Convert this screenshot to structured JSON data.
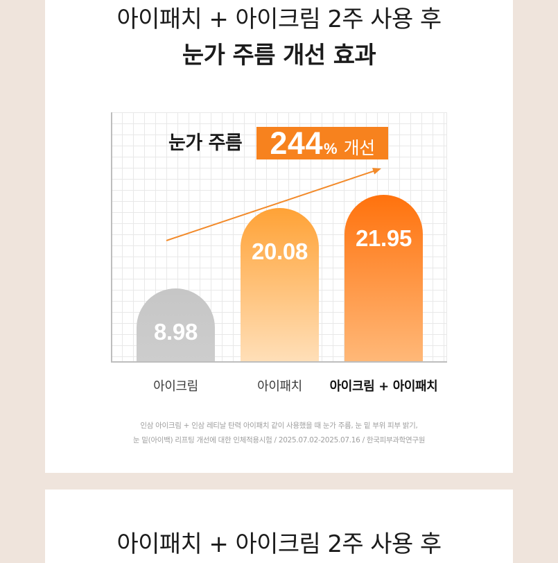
{
  "colors": {
    "page_background": "#efe4dc",
    "card_background": "#ffffff",
    "text": "#1b1b1b",
    "accent": "#f7821e",
    "arrow": "#f28a2a",
    "footnote": "#9e9e9e",
    "grid": "#e8e8e8",
    "axis": "#bdbdbd"
  },
  "chart_data": {
    "type": "bar",
    "subtitle": "아이패치 + 아이크림 2주 사용 후",
    "title": "눈가 주름 개선 효과",
    "categories": [
      "아이크림",
      "아이패치",
      "아이크림 + 아이패치"
    ],
    "values": [
      8.98,
      20.08,
      21.95
    ],
    "bar_colors": [
      [
        "#c6c6c6",
        "#cdcdcd"
      ],
      [
        "#ffa236",
        "#ffdfb8"
      ],
      [
        "#ff720d",
        "#ffb878"
      ]
    ],
    "grid": true,
    "annotation": {
      "label": "눈가 주름",
      "value": "244",
      "unit": "%",
      "text": "개선"
    },
    "note_lines": [
      "인삼 아이크림 + 인삼 레티날 탄력 아이패치 같이 사용했을 때 눈가 주름, 눈 밑 부위 피부 밝기,",
      "눈 밑(아이백) 리프팅 개선에 대한 인체적용시험 / 2025.07.02-2025.07.16 / 한국피부과학연구원"
    ]
  },
  "section_2": {
    "title": "아이패치 + 아이크림 2주 사용 후"
  }
}
